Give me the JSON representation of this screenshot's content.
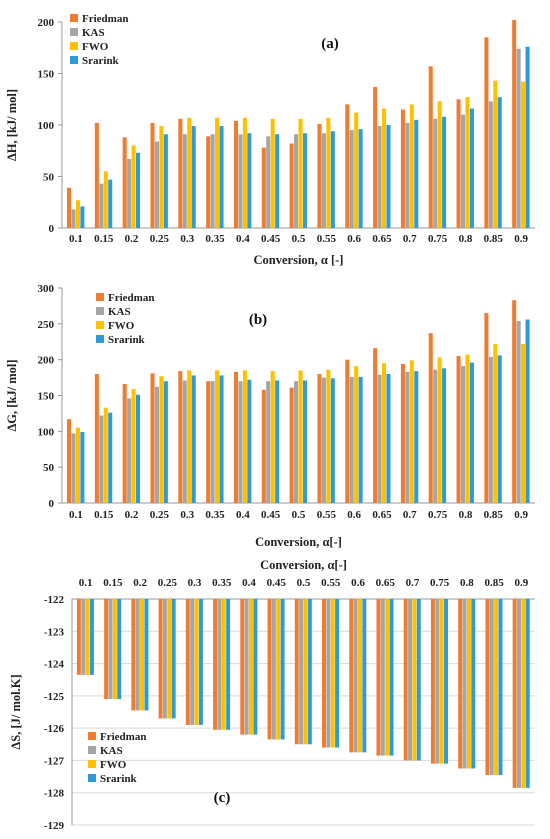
{
  "chart_data": [
    {
      "type": "bar",
      "panel_label": "(a)",
      "ylabel": "ΔH, [kJ/ mol]",
      "xlabel": "Conversion, α [-]",
      "categories": [
        "0.1",
        "0.15",
        "0.2",
        "0.25",
        "0.3",
        "0.35",
        "0.4",
        "0.45",
        "0.5",
        "0.55",
        "0.6",
        "0.65",
        "0.7",
        "0.75",
        "0.8",
        "0.85",
        "0.9"
      ],
      "ylim": [
        0,
        200
      ],
      "yticks": [
        "0",
        "50",
        "100",
        "150",
        "200"
      ],
      "grid": false,
      "legend_position": "top-left",
      "series": [
        {
          "name": "Friedman",
          "values": [
            39,
            102,
            88,
            102,
            106,
            89,
            104,
            78,
            82,
            101,
            120,
            137,
            115,
            157,
            125,
            185,
            202
          ]
        },
        {
          "name": "KAS",
          "values": [
            18,
            43,
            67,
            84,
            91,
            91,
            91,
            89,
            91,
            92,
            95,
            99,
            102,
            106,
            110,
            123,
            174
          ]
        },
        {
          "name": "FWO",
          "values": [
            27,
            55,
            80,
            99,
            107,
            107,
            107,
            106,
            106,
            107,
            112,
            116,
            120,
            123,
            127,
            143,
            142
          ]
        },
        {
          "name": "Srarink",
          "values": [
            21,
            47,
            73,
            91,
            99,
            99,
            92,
            91,
            92,
            94,
            96,
            100,
            105,
            108,
            116,
            127,
            176
          ]
        }
      ]
    },
    {
      "type": "bar",
      "panel_label": "(b)",
      "ylabel": "ΔG, [kJ/ mol]",
      "xlabel": "Conversion, α[-]",
      "categories": [
        "0.1",
        "0.15",
        "0.2",
        "0.25",
        "0.3",
        "0.35",
        "0.4",
        "0.45",
        "0.5",
        "0.55",
        "0.6",
        "0.65",
        "0.7",
        "0.75",
        "0.8",
        "0.85",
        "0.9"
      ],
      "ylim": [
        0,
        300
      ],
      "yticks": [
        "0",
        "50",
        "100",
        "150",
        "200",
        "250",
        "300"
      ],
      "grid": false,
      "legend_position": "top-left",
      "series": [
        {
          "name": "Friedman",
          "values": [
            117,
            180,
            166,
            181,
            184,
            170,
            183,
            158,
            161,
            180,
            200,
            216,
            194,
            237,
            205,
            265,
            283
          ]
        },
        {
          "name": "KAS",
          "values": [
            97,
            122,
            146,
            162,
            171,
            170,
            170,
            170,
            170,
            175,
            176,
            179,
            183,
            186,
            191,
            204,
            254
          ]
        },
        {
          "name": "FWO",
          "values": [
            105,
            133,
            159,
            177,
            185,
            185,
            185,
            184,
            185,
            186,
            191,
            195,
            199,
            203,
            207,
            222,
            222
          ]
        },
        {
          "name": "Srarink",
          "values": [
            99,
            126,
            151,
            170,
            178,
            178,
            172,
            171,
            171,
            174,
            176,
            180,
            184,
            188,
            196,
            206,
            256
          ]
        }
      ]
    },
    {
      "type": "bar",
      "panel_label": "(c)",
      "ylabel": "ΔS, [J/ mol.K]",
      "xlabel": "Conversion, α[-]",
      "categories": [
        "0.1",
        "0.15",
        "0.2",
        "0.25",
        "0.3",
        "0.35",
        "0.4",
        "0.45",
        "0.5",
        "0.55",
        "0.6",
        "0.65",
        "0.7",
        "0.75",
        "0.8",
        "0.85",
        "0.9"
      ],
      "ylim": [
        -129,
        -122
      ],
      "yticks": [
        "-122",
        "-123",
        "-124",
        "-125",
        "-126",
        "-127",
        "-128",
        "-129"
      ],
      "grid": true,
      "legend_position": "bottom-left",
      "series": [
        {
          "name": "Friedman",
          "values": [
            -124.35,
            -125.1,
            -125.45,
            -125.7,
            -125.9,
            -126.05,
            -126.2,
            -126.35,
            -126.5,
            -126.6,
            -126.75,
            -126.85,
            -127.0,
            -127.1,
            -127.25,
            -127.45,
            -127.85
          ]
        },
        {
          "name": "KAS",
          "values": [
            -124.35,
            -125.1,
            -125.45,
            -125.7,
            -125.9,
            -126.05,
            -126.2,
            -126.35,
            -126.5,
            -126.6,
            -126.75,
            -126.85,
            -127.0,
            -127.1,
            -127.25,
            -127.45,
            -127.85
          ]
        },
        {
          "name": "FWO",
          "values": [
            -124.35,
            -125.1,
            -125.45,
            -125.7,
            -125.9,
            -126.05,
            -126.2,
            -126.35,
            -126.5,
            -126.6,
            -126.75,
            -126.85,
            -127.0,
            -127.1,
            -127.25,
            -127.45,
            -127.85
          ]
        },
        {
          "name": "Srarink",
          "values": [
            -124.35,
            -125.1,
            -125.45,
            -125.7,
            -125.9,
            -126.05,
            -126.2,
            -126.35,
            -126.5,
            -126.6,
            -126.75,
            -126.85,
            -127.0,
            -127.1,
            -127.25,
            -127.45,
            -127.85
          ]
        }
      ]
    }
  ],
  "colors": {
    "Friedman": "#ed7d31",
    "KAS": "#a5a5a5",
    "FWO": "#ffc000",
    "Srarink": "#2e9bd6"
  }
}
